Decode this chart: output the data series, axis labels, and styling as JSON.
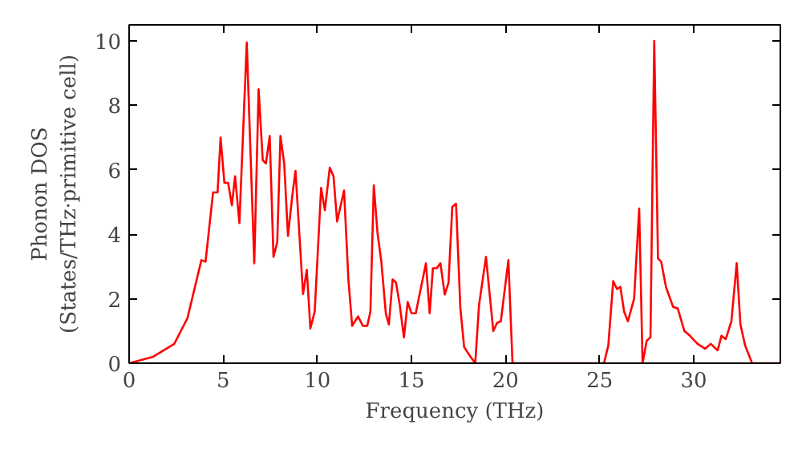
{
  "chart_data": {
    "type": "line",
    "xlabel": "Frequency (THz)",
    "ylabel": "Phonon DOS\n(States/THz·primitive cell)",
    "xlim": [
      0,
      34.6
    ],
    "ylim": [
      0,
      10.5
    ],
    "xticks": [
      0,
      5,
      10,
      15,
      20,
      25,
      30
    ],
    "yticks": [
      0,
      2,
      4,
      6,
      8,
      10
    ],
    "grid": false,
    "series": [
      {
        "color": "#ff0000",
        "x": [
          0,
          1.28,
          2.4,
          3.1,
          3.84,
          4.06,
          4.46,
          4.7,
          4.86,
          5.06,
          5.26,
          5.46,
          5.63,
          5.86,
          6.25,
          6.65,
          6.88,
          7.1,
          7.27,
          7.47,
          7.67,
          7.87,
          8.04,
          8.24,
          8.44,
          8.67,
          8.84,
          9.24,
          9.44,
          9.63,
          9.86,
          10.2,
          10.4,
          10.66,
          10.86,
          11.05,
          11.42,
          11.65,
          11.85,
          12.16,
          12.42,
          12.65,
          12.82,
          13.0,
          13.2,
          13.4,
          13.64,
          13.8,
          14.0,
          14.18,
          14.38,
          14.6,
          14.8,
          15.0,
          15.23,
          15.49,
          15.77,
          15.97,
          16.14,
          16.34,
          16.54,
          16.77,
          16.97,
          17.17,
          17.37,
          17.6,
          17.8,
          18.14,
          18.39,
          18.59,
          18.96,
          19.35,
          19.55,
          19.75,
          20.15,
          20.37,
          25.23,
          25.46,
          25.72,
          25.92,
          26.1,
          26.3,
          26.5,
          26.83,
          27.1,
          27.28,
          27.5,
          27.7,
          27.9,
          28.1,
          28.27,
          28.53,
          28.9,
          29.15,
          29.5,
          29.8,
          30.2,
          30.6,
          30.9,
          31.27,
          31.47,
          31.7,
          32.0,
          32.28,
          32.48,
          32.73,
          33.1,
          34.6
        ],
        "values": [
          0,
          0.2,
          0.6,
          1.4,
          3.2,
          3.15,
          5.3,
          5.3,
          7.0,
          5.6,
          5.6,
          4.9,
          5.8,
          4.35,
          9.95,
          3.1,
          8.5,
          6.3,
          6.2,
          7.05,
          3.3,
          3.75,
          7.05,
          6.2,
          3.95,
          5.2,
          5.97,
          2.15,
          2.9,
          1.08,
          1.6,
          5.44,
          4.75,
          6.07,
          5.8,
          4.4,
          5.36,
          2.6,
          1.16,
          1.45,
          1.16,
          1.16,
          1.6,
          5.52,
          4.03,
          3.15,
          1.54,
          1.2,
          2.6,
          2.5,
          1.8,
          0.8,
          1.9,
          1.55,
          1.55,
          2.3,
          3.1,
          1.55,
          2.95,
          2.95,
          3.1,
          2.13,
          2.5,
          4.85,
          4.95,
          1.7,
          0.5,
          0.2,
          0,
          1.8,
          3.3,
          1.0,
          1.25,
          1.3,
          3.2,
          0,
          0,
          0.55,
          2.55,
          2.3,
          2.37,
          1.6,
          1.3,
          2.0,
          4.8,
          0,
          0.7,
          0.8,
          10.0,
          3.25,
          3.15,
          2.35,
          1.75,
          1.7,
          1.0,
          0.85,
          0.6,
          0.45,
          0.6,
          0.4,
          0.85,
          0.75,
          1.3,
          3.1,
          1.2,
          0.55,
          0,
          0
        ]
      }
    ]
  }
}
